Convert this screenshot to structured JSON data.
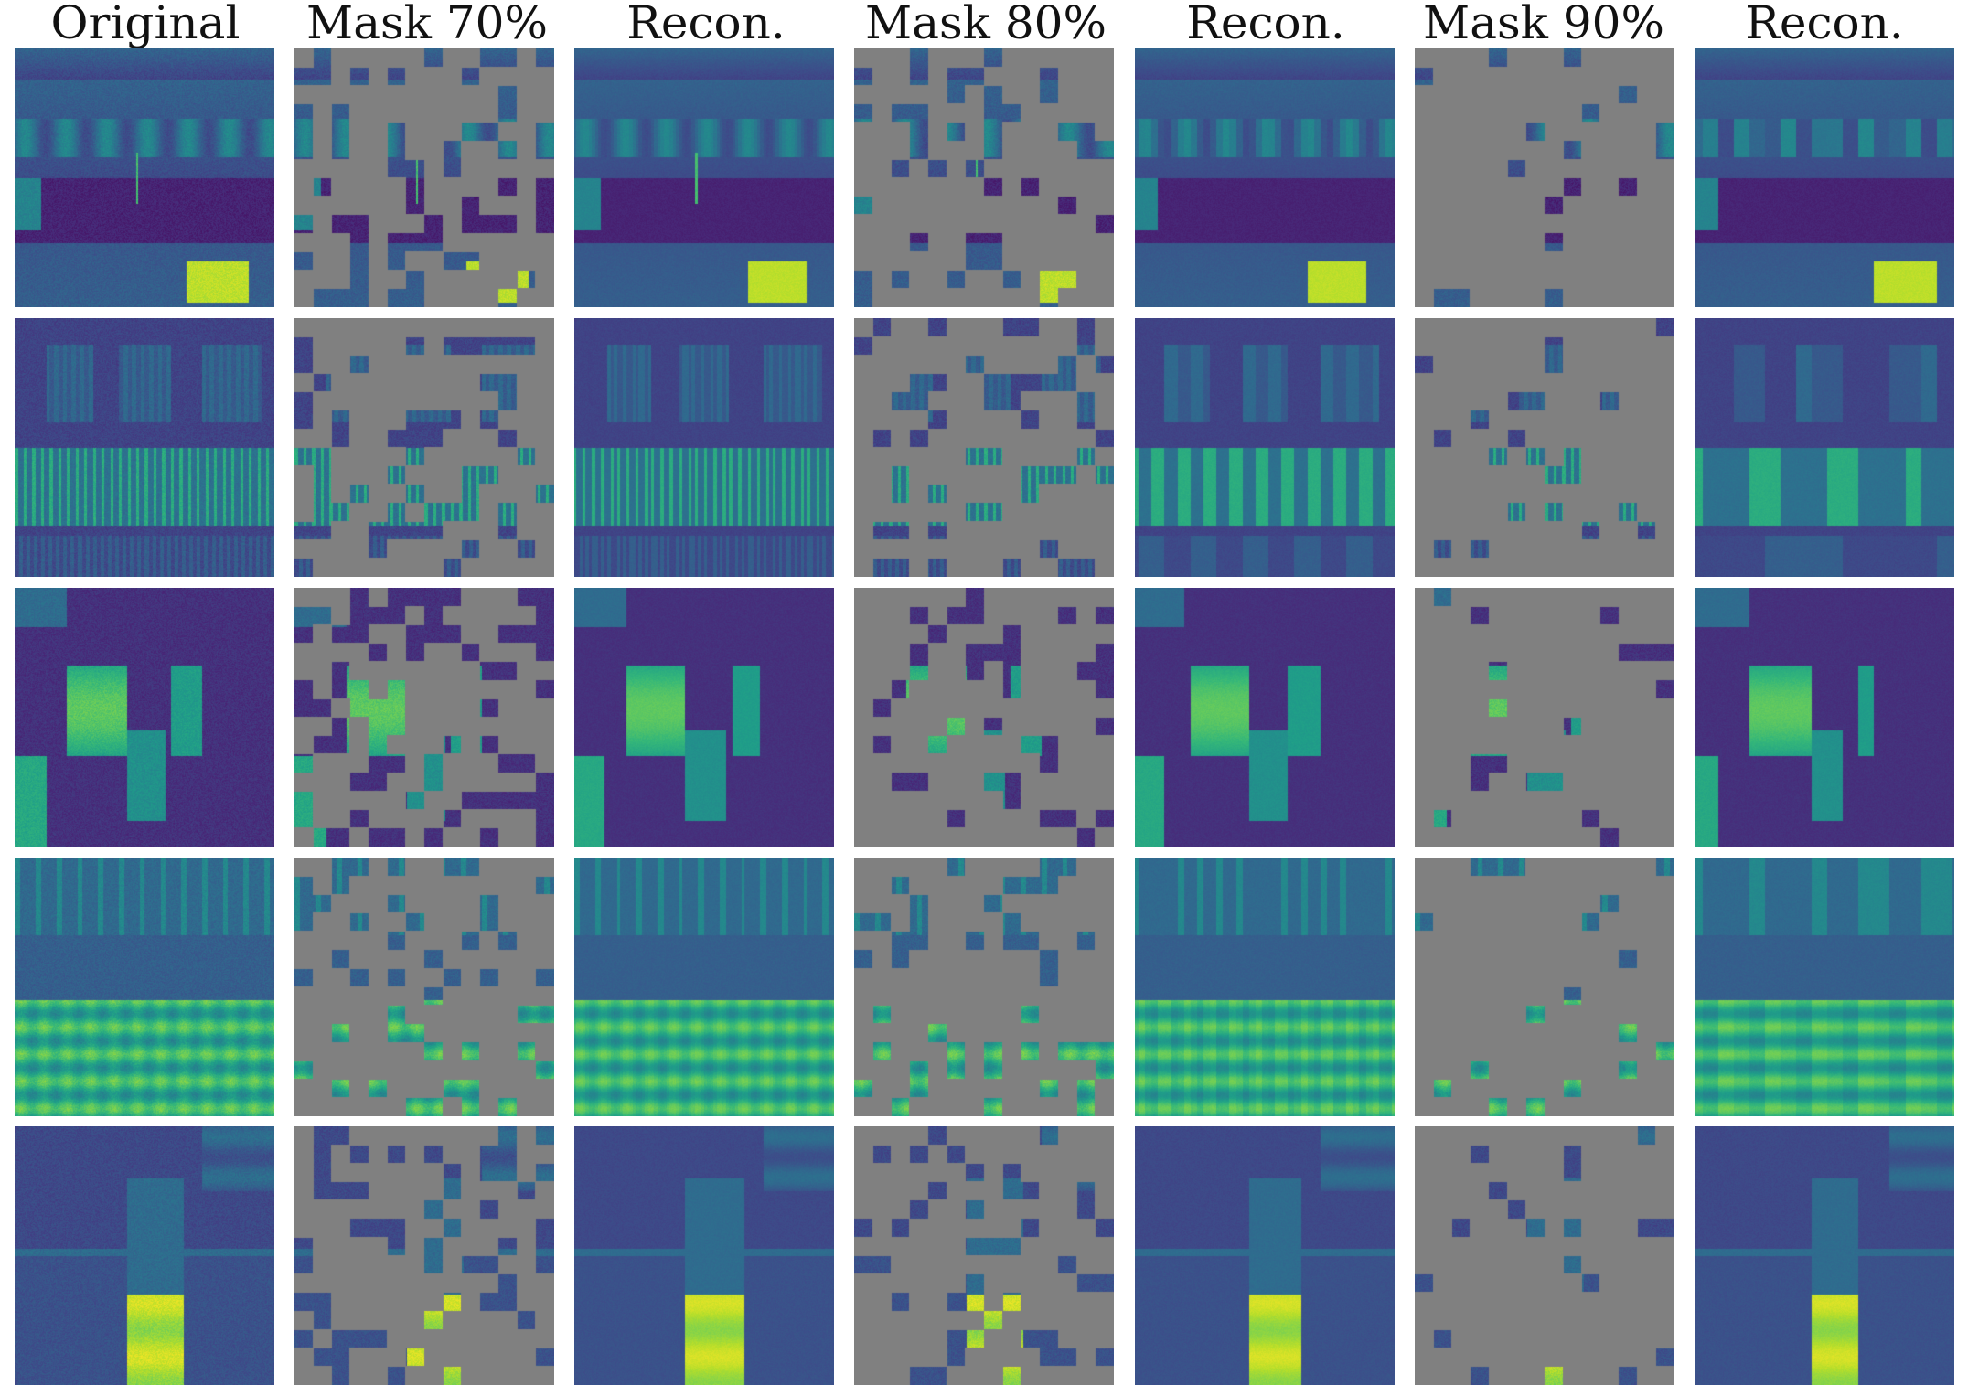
{
  "columns": [
    {
      "title": "Original",
      "kind": "original"
    },
    {
      "title": "Mask 70%",
      "kind": "mask",
      "ratio": 0.7
    },
    {
      "title": "Recon.",
      "kind": "recon",
      "mask_ratio": 0.7
    },
    {
      "title": "Mask 80%",
      "kind": "mask",
      "ratio": 0.8
    },
    {
      "title": "Recon.",
      "kind": "recon",
      "mask_ratio": 0.8
    },
    {
      "title": "Mask 90%",
      "kind": "mask",
      "ratio": 0.9
    },
    {
      "title": "Recon.",
      "kind": "recon",
      "mask_ratio": 0.9
    }
  ],
  "rows": [
    {
      "id": "sample-1",
      "pattern": "horizontal bands with bright block at bottom right"
    },
    {
      "id": "sample-2",
      "pattern": "dense vertical stripes in middle band"
    },
    {
      "id": "sample-3",
      "pattern": "bright vertical blocks in center"
    },
    {
      "id": "sample-4",
      "pattern": "bright horizontal band in lower half"
    },
    {
      "id": "sample-5",
      "pattern": "bright block at bottom center"
    }
  ],
  "colormap": [
    "#440154",
    "#3b528b",
    "#21918c",
    "#5ec962",
    "#fde725"
  ],
  "mask_color": "#808080"
}
